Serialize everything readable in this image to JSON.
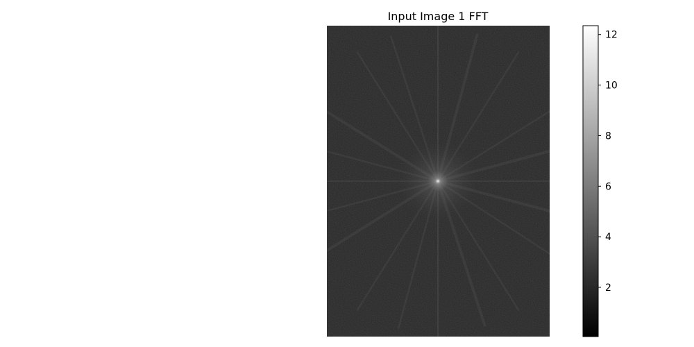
{
  "chart_data": {
    "type": "heatmap",
    "title": "Input Image 1 FFT",
    "xlabel": "",
    "ylabel": "",
    "axes_visible": false,
    "colormap": "gray",
    "colorbar": {
      "range": [
        0.05,
        12.35
      ],
      "ticks": [
        2,
        4,
        6,
        8,
        10,
        12
      ],
      "tick_labels": [
        "2",
        "4",
        "6",
        "8",
        "10",
        "12"
      ]
    },
    "image_description": "FFT magnitude spectrum (log scale): dark noisy field with a bright point at the center and faint radial streaks plus thin horizontal and vertical lines through the center",
    "center_peak_value": 12.3,
    "background_level": 2.1
  }
}
